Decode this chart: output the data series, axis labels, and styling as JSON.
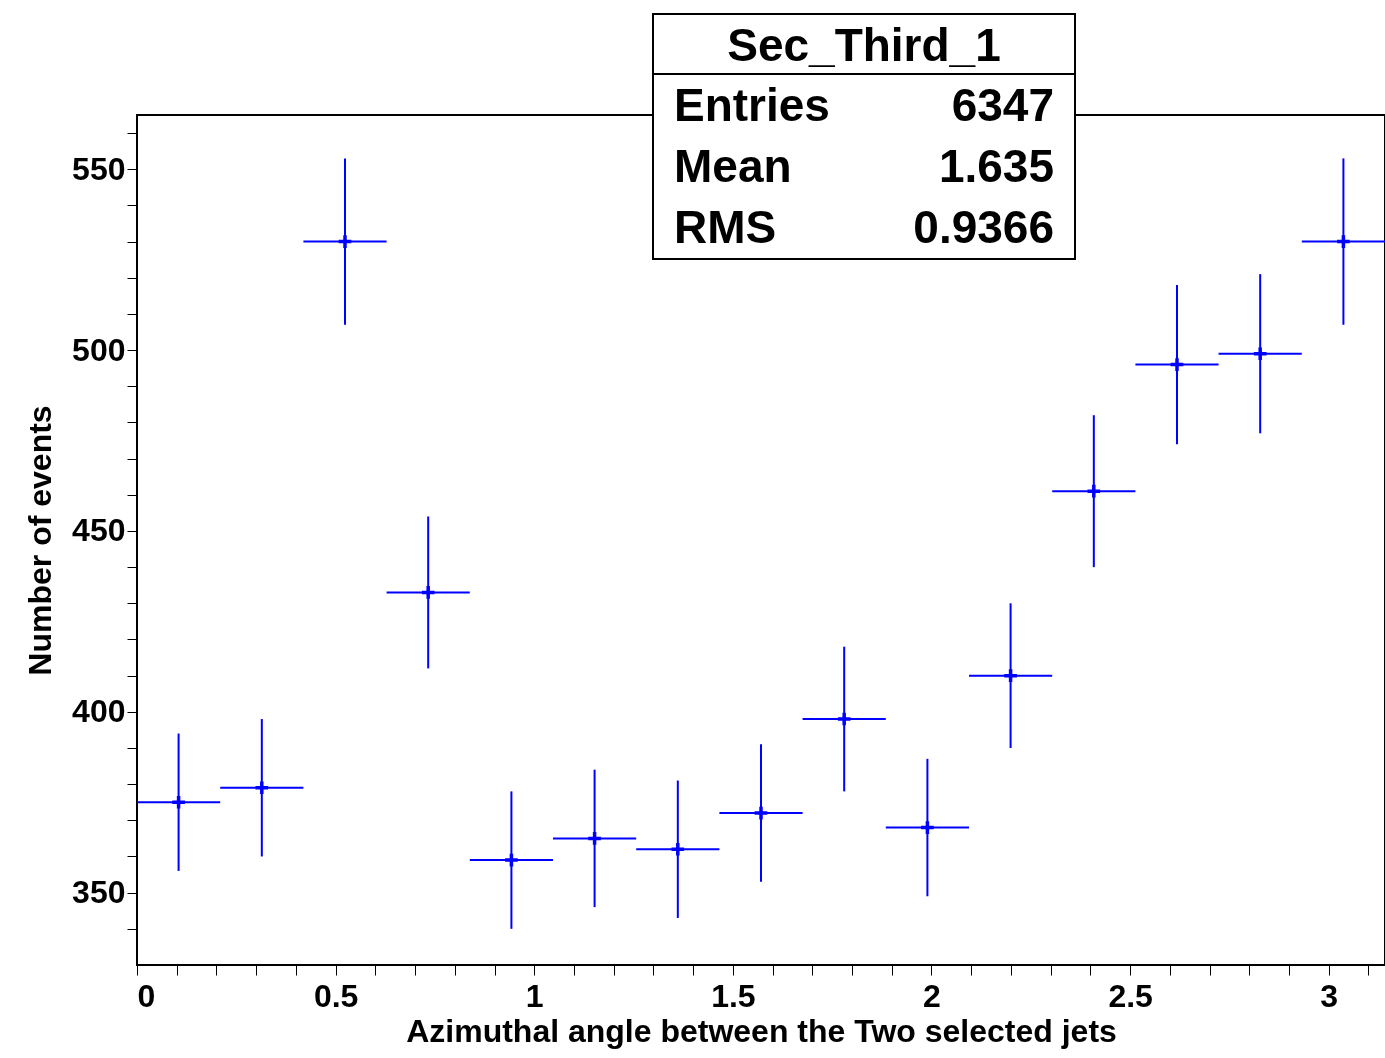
{
  "chart_data": {
    "type": "scatter",
    "title": "Sec_Third_1",
    "xlabel": "Azimuthal angle between the Two selected  jets",
    "ylabel": "Number of events",
    "annotations": [
      "Entries 6347",
      "Mean 1.635",
      "RMS 0.9366"
    ],
    "x": [
      0.1047,
      0.3142,
      0.5236,
      0.733,
      0.9425,
      1.1519,
      1.3614,
      1.5708,
      1.7802,
      1.9897,
      2.1991,
      2.4086,
      2.618,
      2.8274,
      3.0369
    ],
    "values": [
      375,
      379,
      530,
      433,
      359,
      365,
      362,
      372,
      398,
      368,
      410,
      461,
      496,
      499,
      530
    ],
    "errors": [
      19,
      19,
      23,
      21,
      19,
      19,
      19,
      19,
      20,
      19,
      20,
      21,
      22,
      22,
      23
    ],
    "xerrors": [
      0.1047,
      0.1047,
      0.1047,
      0.1047,
      0.1047,
      0.1047,
      0.1047,
      0.1047,
      0.1047,
      0.1047,
      0.1047,
      0.1047,
      0.1047,
      0.1047,
      0.1047
    ],
    "color": "#0000ff",
    "marker": "cross",
    "grid": false,
    "xlim": [
      0,
      3.1416
    ],
    "ylim": [
      330,
      565
    ],
    "xticks": [
      0,
      {
        "value": 0.1,
        "label": null
      },
      {
        "value": 0.2,
        "label": null
      },
      {
        "value": 0.3,
        "label": null
      },
      {
        "value": 0.4,
        "label": null
      },
      0.5,
      {
        "value": 0.6,
        "label": null
      },
      {
        "value": 0.7,
        "label": null
      },
      {
        "value": 0.8,
        "label": null
      },
      {
        "value": 0.9,
        "label": null
      },
      1,
      {
        "value": 1.1,
        "label": null
      },
      {
        "value": 1.2,
        "label": null
      },
      {
        "value": 1.3,
        "label": null
      },
      {
        "value": 1.4,
        "label": null
      },
      1.5,
      {
        "value": 1.6,
        "label": null
      },
      {
        "value": 1.7,
        "label": null
      },
      {
        "value": 1.8,
        "label": null
      },
      {
        "value": 1.9,
        "label": null
      },
      2,
      {
        "value": 2.1,
        "label": null
      },
      {
        "value": 2.2,
        "label": null
      },
      {
        "value": 2.3,
        "label": null
      },
      {
        "value": 2.4,
        "label": null
      },
      2.5,
      {
        "value": 2.6,
        "label": null
      },
      {
        "value": 2.7,
        "label": null
      },
      {
        "value": 2.8,
        "label": null
      },
      {
        "value": 2.9,
        "label": null
      },
      3,
      {
        "value": 3.1,
        "label": null
      }
    ],
    "yticks": [
      {
        "value": 340,
        "label": null
      },
      350,
      {
        "value": 360,
        "label": null
      },
      {
        "value": 370,
        "label": null
      },
      {
        "value": 380,
        "label": null
      },
      {
        "value": 390,
        "label": null
      },
      400,
      {
        "value": 410,
        "label": null
      },
      {
        "value": 420,
        "label": null
      },
      {
        "value": 430,
        "label": null
      },
      {
        "value": 440,
        "label": null
      },
      450,
      {
        "value": 460,
        "label": null
      },
      {
        "value": 470,
        "label": null
      },
      {
        "value": 480,
        "label": null
      },
      {
        "value": 490,
        "label": null
      },
      500,
      {
        "value": 510,
        "label": null
      },
      {
        "value": 520,
        "label": null
      },
      {
        "value": 530,
        "label": null
      },
      {
        "value": 540,
        "label": null
      },
      550,
      {
        "value": 560,
        "label": null
      }
    ]
  }
}
